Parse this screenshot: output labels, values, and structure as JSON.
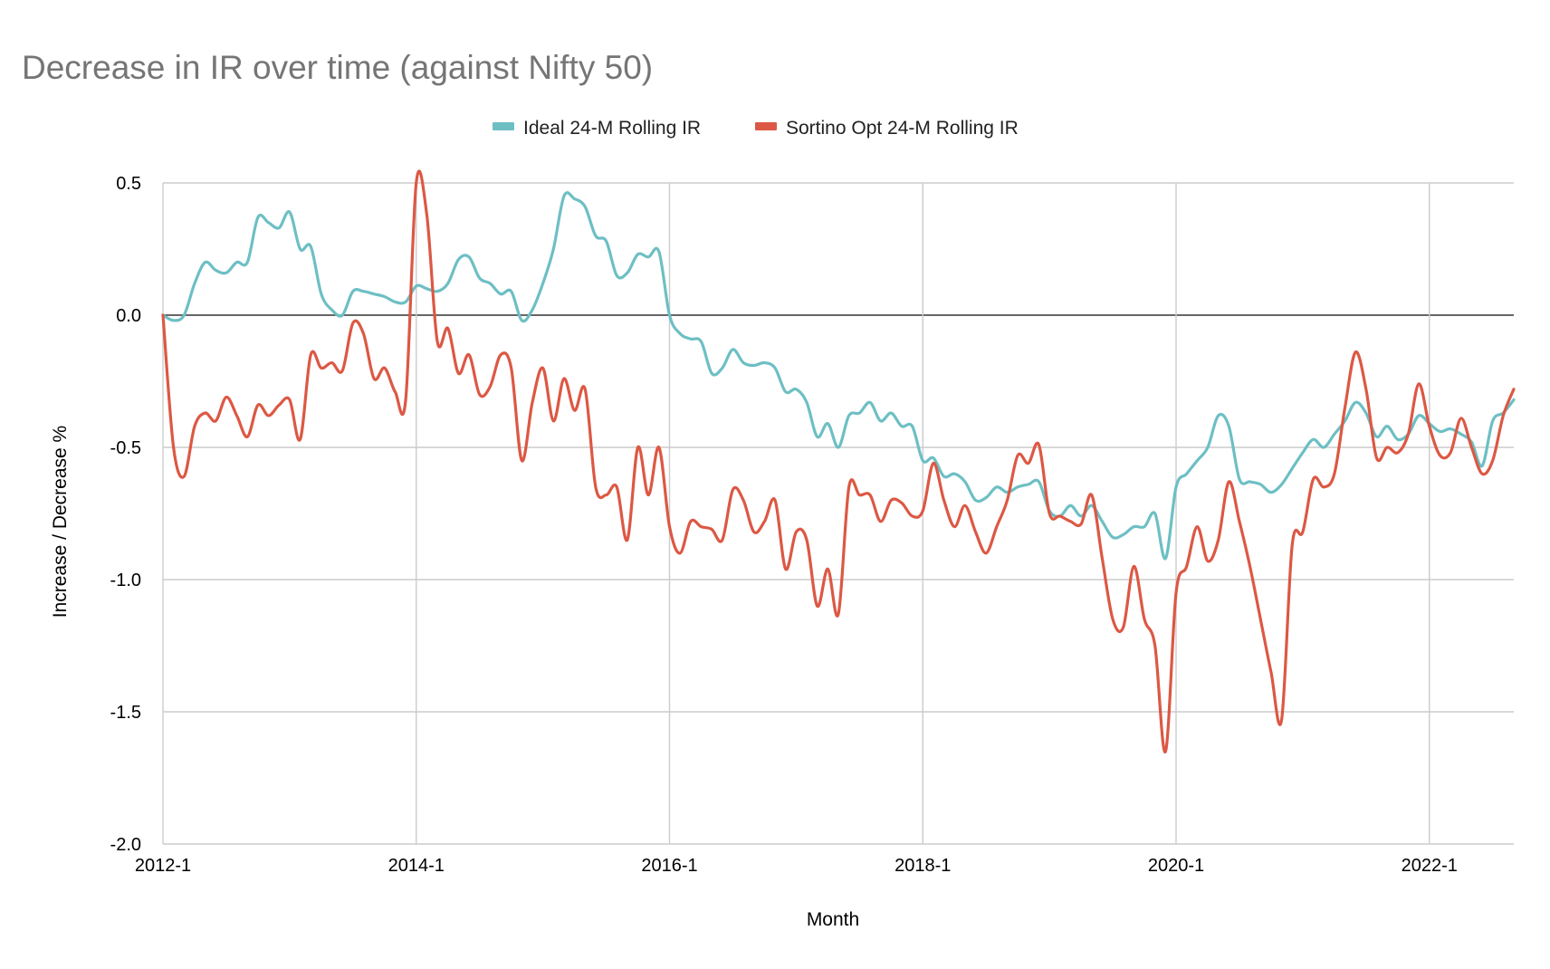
{
  "chart_data": {
    "type": "line",
    "title": "Decrease in IR over time (against Nifty 50)",
    "xlabel": "Month",
    "ylabel": "Increase / Decrease %",
    "ylim": [
      -2.0,
      0.5
    ],
    "yticks": [
      "0.5",
      "0.0",
      "-0.5",
      "-1.0",
      "-1.5",
      "-2.0"
    ],
    "ytick_values": [
      0.5,
      0.0,
      -0.5,
      -1.0,
      -1.5,
      -2.0
    ],
    "xticks": [
      "2012-1",
      "2014-1",
      "2016-1",
      "2018-1",
      "2020-1",
      "2022-1"
    ],
    "xtick_values": [
      "2012-01",
      "2014-01",
      "2016-01",
      "2018-01",
      "2020-01",
      "2022-01"
    ],
    "xlim": [
      "2012-01",
      "2022-09"
    ],
    "grid": true,
    "legend_position": "top",
    "series": [
      {
        "name": "Ideal 24-M Rolling IR",
        "color": "#6dbfc4",
        "points": [
          [
            "2012-01",
            0.0
          ],
          [
            "2012-02",
            -0.02
          ],
          [
            "2012-03",
            0.0
          ],
          [
            "2012-04",
            0.12
          ],
          [
            "2012-05",
            0.2
          ],
          [
            "2012-06",
            0.17
          ],
          [
            "2012-07",
            0.16
          ],
          [
            "2012-08",
            0.2
          ],
          [
            "2012-09",
            0.2
          ],
          [
            "2012-10",
            0.37
          ],
          [
            "2012-11",
            0.35
          ],
          [
            "2012-12",
            0.33
          ],
          [
            "2013-01",
            0.39
          ],
          [
            "2013-02",
            0.25
          ],
          [
            "2013-03",
            0.26
          ],
          [
            "2013-04",
            0.08
          ],
          [
            "2013-05",
            0.02
          ],
          [
            "2013-06",
            0.0
          ],
          [
            "2013-07",
            0.09
          ],
          [
            "2013-08",
            0.09
          ],
          [
            "2013-09",
            0.08
          ],
          [
            "2013-10",
            0.07
          ],
          [
            "2013-11",
            0.05
          ],
          [
            "2013-12",
            0.05
          ],
          [
            "2014-01",
            0.11
          ],
          [
            "2014-02",
            0.1
          ],
          [
            "2014-03",
            0.09
          ],
          [
            "2014-04",
            0.12
          ],
          [
            "2014-05",
            0.21
          ],
          [
            "2014-06",
            0.22
          ],
          [
            "2014-07",
            0.14
          ],
          [
            "2014-08",
            0.12
          ],
          [
            "2014-09",
            0.08
          ],
          [
            "2014-10",
            0.09
          ],
          [
            "2014-11",
            -0.02
          ],
          [
            "2014-12",
            0.02
          ],
          [
            "2015-01",
            0.12
          ],
          [
            "2015-02",
            0.25
          ],
          [
            "2015-03",
            0.45
          ],
          [
            "2015-04",
            0.44
          ],
          [
            "2015-05",
            0.41
          ],
          [
            "2015-06",
            0.3
          ],
          [
            "2015-07",
            0.28
          ],
          [
            "2015-08",
            0.15
          ],
          [
            "2015-09",
            0.16
          ],
          [
            "2015-10",
            0.23
          ],
          [
            "2015-11",
            0.22
          ],
          [
            "2015-12",
            0.24
          ],
          [
            "2016-01",
            0.0
          ],
          [
            "2016-02",
            -0.07
          ],
          [
            "2016-03",
            -0.09
          ],
          [
            "2016-04",
            -0.1
          ],
          [
            "2016-05",
            -0.22
          ],
          [
            "2016-06",
            -0.2
          ],
          [
            "2016-07",
            -0.13
          ],
          [
            "2016-08",
            -0.18
          ],
          [
            "2016-09",
            -0.19
          ],
          [
            "2016-10",
            -0.18
          ],
          [
            "2016-11",
            -0.2
          ],
          [
            "2016-12",
            -0.29
          ],
          [
            "2017-01",
            -0.28
          ],
          [
            "2017-02",
            -0.33
          ],
          [
            "2017-03",
            -0.46
          ],
          [
            "2017-04",
            -0.41
          ],
          [
            "2017-05",
            -0.5
          ],
          [
            "2017-06",
            -0.38
          ],
          [
            "2017-07",
            -0.37
          ],
          [
            "2017-08",
            -0.33
          ],
          [
            "2017-09",
            -0.4
          ],
          [
            "2017-10",
            -0.37
          ],
          [
            "2017-11",
            -0.42
          ],
          [
            "2017-12",
            -0.42
          ],
          [
            "2018-01",
            -0.55
          ],
          [
            "2018-02",
            -0.54
          ],
          [
            "2018-03",
            -0.61
          ],
          [
            "2018-04",
            -0.6
          ],
          [
            "2018-05",
            -0.63
          ],
          [
            "2018-06",
            -0.7
          ],
          [
            "2018-07",
            -0.69
          ],
          [
            "2018-08",
            -0.65
          ],
          [
            "2018-09",
            -0.67
          ],
          [
            "2018-10",
            -0.65
          ],
          [
            "2018-11",
            -0.64
          ],
          [
            "2018-12",
            -0.63
          ],
          [
            "2019-01",
            -0.74
          ],
          [
            "2019-02",
            -0.76
          ],
          [
            "2019-03",
            -0.72
          ],
          [
            "2019-04",
            -0.76
          ],
          [
            "2019-05",
            -0.72
          ],
          [
            "2019-06",
            -0.78
          ],
          [
            "2019-07",
            -0.84
          ],
          [
            "2019-08",
            -0.83
          ],
          [
            "2019-09",
            -0.8
          ],
          [
            "2019-10",
            -0.8
          ],
          [
            "2019-11",
            -0.75
          ],
          [
            "2019-12",
            -0.92
          ],
          [
            "2020-01",
            -0.65
          ],
          [
            "2020-02",
            -0.6
          ],
          [
            "2020-03",
            -0.55
          ],
          [
            "2020-04",
            -0.5
          ],
          [
            "2020-05",
            -0.38
          ],
          [
            "2020-06",
            -0.42
          ],
          [
            "2020-07",
            -0.62
          ],
          [
            "2020-08",
            -0.63
          ],
          [
            "2020-09",
            -0.64
          ],
          [
            "2020-10",
            -0.67
          ],
          [
            "2020-11",
            -0.64
          ],
          [
            "2020-12",
            -0.58
          ],
          [
            "2021-01",
            -0.52
          ],
          [
            "2021-02",
            -0.47
          ],
          [
            "2021-03",
            -0.5
          ],
          [
            "2021-04",
            -0.45
          ],
          [
            "2021-05",
            -0.4
          ],
          [
            "2021-06",
            -0.33
          ],
          [
            "2021-07",
            -0.37
          ],
          [
            "2021-08",
            -0.46
          ],
          [
            "2021-09",
            -0.42
          ],
          [
            "2021-10",
            -0.47
          ],
          [
            "2021-11",
            -0.45
          ],
          [
            "2021-12",
            -0.38
          ],
          [
            "2022-01",
            -0.41
          ],
          [
            "2022-02",
            -0.44
          ],
          [
            "2022-03",
            -0.43
          ],
          [
            "2022-04",
            -0.45
          ],
          [
            "2022-05",
            -0.48
          ],
          [
            "2022-06",
            -0.57
          ],
          [
            "2022-07",
            -0.4
          ],
          [
            "2022-08",
            -0.37
          ],
          [
            "2022-09",
            -0.32
          ]
        ]
      },
      {
        "name": "Sortino Opt 24-M Rolling IR",
        "color": "#dc5844",
        "points": [
          [
            "2012-01",
            0.0
          ],
          [
            "2012-02",
            -0.5
          ],
          [
            "2012-03",
            -0.61
          ],
          [
            "2012-04",
            -0.42
          ],
          [
            "2012-05",
            -0.37
          ],
          [
            "2012-06",
            -0.4
          ],
          [
            "2012-07",
            -0.31
          ],
          [
            "2012-08",
            -0.38
          ],
          [
            "2012-09",
            -0.46
          ],
          [
            "2012-10",
            -0.34
          ],
          [
            "2012-11",
            -0.38
          ],
          [
            "2012-12",
            -0.34
          ],
          [
            "2013-01",
            -0.32
          ],
          [
            "2013-02",
            -0.47
          ],
          [
            "2013-03",
            -0.15
          ],
          [
            "2013-04",
            -0.2
          ],
          [
            "2013-05",
            -0.18
          ],
          [
            "2013-06",
            -0.21
          ],
          [
            "2013-07",
            -0.03
          ],
          [
            "2013-08",
            -0.07
          ],
          [
            "2013-09",
            -0.24
          ],
          [
            "2013-10",
            -0.2
          ],
          [
            "2013-11",
            -0.29
          ],
          [
            "2013-12",
            -0.32
          ],
          [
            "2014-01",
            0.5
          ],
          [
            "2014-02",
            0.38
          ],
          [
            "2014-03",
            -0.1
          ],
          [
            "2014-04",
            -0.05
          ],
          [
            "2014-05",
            -0.22
          ],
          [
            "2014-06",
            -0.15
          ],
          [
            "2014-07",
            -0.3
          ],
          [
            "2014-08",
            -0.27
          ],
          [
            "2014-09",
            -0.15
          ],
          [
            "2014-10",
            -0.2
          ],
          [
            "2014-11",
            -0.55
          ],
          [
            "2014-12",
            -0.33
          ],
          [
            "2015-01",
            -0.2
          ],
          [
            "2015-02",
            -0.4
          ],
          [
            "2015-03",
            -0.24
          ],
          [
            "2015-04",
            -0.36
          ],
          [
            "2015-05",
            -0.28
          ],
          [
            "2015-06",
            -0.65
          ],
          [
            "2015-07",
            -0.68
          ],
          [
            "2015-08",
            -0.65
          ],
          [
            "2015-09",
            -0.85
          ],
          [
            "2015-10",
            -0.5
          ],
          [
            "2015-11",
            -0.68
          ],
          [
            "2015-12",
            -0.5
          ],
          [
            "2016-01",
            -0.8
          ],
          [
            "2016-02",
            -0.9
          ],
          [
            "2016-03",
            -0.78
          ],
          [
            "2016-04",
            -0.8
          ],
          [
            "2016-05",
            -0.81
          ],
          [
            "2016-06",
            -0.85
          ],
          [
            "2016-07",
            -0.66
          ],
          [
            "2016-08",
            -0.7
          ],
          [
            "2016-09",
            -0.82
          ],
          [
            "2016-10",
            -0.78
          ],
          [
            "2016-11",
            -0.7
          ],
          [
            "2016-12",
            -0.96
          ],
          [
            "2017-01",
            -0.82
          ],
          [
            "2017-02",
            -0.85
          ],
          [
            "2017-03",
            -1.1
          ],
          [
            "2017-04",
            -0.96
          ],
          [
            "2017-05",
            -1.13
          ],
          [
            "2017-06",
            -0.65
          ],
          [
            "2017-07",
            -0.68
          ],
          [
            "2017-08",
            -0.68
          ],
          [
            "2017-09",
            -0.78
          ],
          [
            "2017-10",
            -0.7
          ],
          [
            "2017-11",
            -0.71
          ],
          [
            "2017-12",
            -0.76
          ],
          [
            "2018-01",
            -0.74
          ],
          [
            "2018-02",
            -0.56
          ],
          [
            "2018-03",
            -0.7
          ],
          [
            "2018-04",
            -0.8
          ],
          [
            "2018-05",
            -0.72
          ],
          [
            "2018-06",
            -0.82
          ],
          [
            "2018-07",
            -0.9
          ],
          [
            "2018-08",
            -0.8
          ],
          [
            "2018-09",
            -0.7
          ],
          [
            "2018-10",
            -0.53
          ],
          [
            "2018-11",
            -0.56
          ],
          [
            "2018-12",
            -0.49
          ],
          [
            "2019-01",
            -0.75
          ],
          [
            "2019-02",
            -0.76
          ],
          [
            "2019-03",
            -0.78
          ],
          [
            "2019-04",
            -0.79
          ],
          [
            "2019-05",
            -0.68
          ],
          [
            "2019-06",
            -0.92
          ],
          [
            "2019-07",
            -1.15
          ],
          [
            "2019-08",
            -1.18
          ],
          [
            "2019-09",
            -0.95
          ],
          [
            "2019-10",
            -1.15
          ],
          [
            "2019-11",
            -1.25
          ],
          [
            "2019-12",
            -1.65
          ],
          [
            "2020-01",
            -1.05
          ],
          [
            "2020-02",
            -0.95
          ],
          [
            "2020-03",
            -0.8
          ],
          [
            "2020-04",
            -0.93
          ],
          [
            "2020-05",
            -0.85
          ],
          [
            "2020-06",
            -0.63
          ],
          [
            "2020-07",
            -0.78
          ],
          [
            "2020-08",
            -0.95
          ],
          [
            "2020-09",
            -1.15
          ],
          [
            "2020-10",
            -1.35
          ],
          [
            "2020-11",
            -1.53
          ],
          [
            "2020-12",
            -0.87
          ],
          [
            "2021-01",
            -0.82
          ],
          [
            "2021-02",
            -0.62
          ],
          [
            "2021-03",
            -0.65
          ],
          [
            "2021-04",
            -0.6
          ],
          [
            "2021-05",
            -0.35
          ],
          [
            "2021-06",
            -0.14
          ],
          [
            "2021-07",
            -0.28
          ],
          [
            "2021-08",
            -0.54
          ],
          [
            "2021-09",
            -0.5
          ],
          [
            "2021-10",
            -0.52
          ],
          [
            "2021-11",
            -0.45
          ],
          [
            "2021-12",
            -0.26
          ],
          [
            "2022-01",
            -0.42
          ],
          [
            "2022-02",
            -0.53
          ],
          [
            "2022-03",
            -0.52
          ],
          [
            "2022-04",
            -0.39
          ],
          [
            "2022-05",
            -0.5
          ],
          [
            "2022-06",
            -0.6
          ],
          [
            "2022-07",
            -0.55
          ],
          [
            "2022-08",
            -0.38
          ],
          [
            "2022-09",
            -0.28
          ]
        ]
      }
    ]
  }
}
